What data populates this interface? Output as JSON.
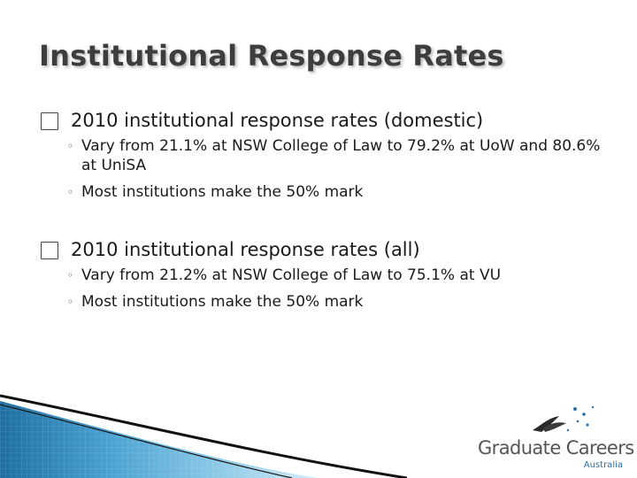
{
  "title": "Institutional Response Rates",
  "bullets": [
    {
      "text": "2010 institutional response rates (domestic)",
      "subs": [
        "Vary from 21.1% at NSW College of Law to 79.2% at UoW and 80.6% at UniSA",
        "Most institutions make the 50% mark"
      ]
    },
    {
      "text": "2010 institutional response rates (all)",
      "subs": [
        "Vary from 21.2% at NSW College of Law to 75.1% at VU",
        "Most institutions make the 50% mark"
      ]
    }
  ],
  "logo": {
    "name": "Graduate Careers",
    "sub": "Australia",
    "icon": "swooping-bird-and-stars-logo"
  },
  "icons": {
    "level1_marker": "square-bullet-icon",
    "level2_marker": "circle-bullet-icon"
  },
  "colors": {
    "title": "#3d3d3d",
    "accent_blue": "#2c6fa8"
  }
}
